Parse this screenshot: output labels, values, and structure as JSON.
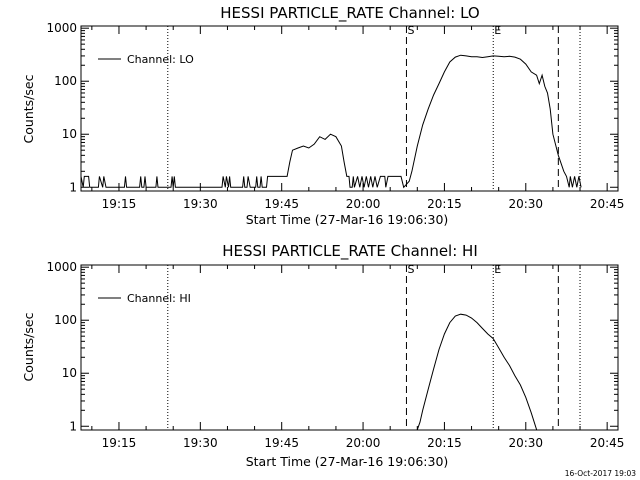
{
  "footer": {
    "timestamp": "16-Oct-2017 19:03"
  },
  "chart_data": [
    {
      "type": "line",
      "title": "HESSI PARTICLE_RATE Channel: LO",
      "xlabel": "Start Time (27-Mar-16 19:06:30)",
      "ylabel": "Counts/sec",
      "y_scale": "log",
      "xlim": [
        "19:08",
        "20:47"
      ],
      "ylim": [
        0.85,
        1100
      ],
      "x_ticks": [
        "19:15",
        "19:30",
        "19:45",
        "20:00",
        "20:15",
        "20:30",
        "20:45"
      ],
      "y_ticks": [
        {
          "value": 1,
          "label": "1"
        },
        {
          "value": 10,
          "label": "10"
        },
        {
          "value": 100,
          "label": "100"
        },
        {
          "value": 1000,
          "label": "1000"
        }
      ],
      "legend": {
        "placement": "top-left",
        "entries": [
          "Channel: LO"
        ]
      },
      "markers": {
        "dotted": [
          "19:24",
          "20:24",
          "20:40"
        ],
        "dashed": [
          "20:08",
          "20:36"
        ],
        "labels": [
          {
            "text": "S",
            "time": "20:08"
          },
          {
            "text": "E",
            "time": "20:24"
          }
        ]
      },
      "series": [
        {
          "name": "Channel: LO",
          "points": [
            [
              "19:08",
              1.6
            ],
            [
              "19:08.4",
              1
            ],
            [
              "19:08.6",
              1.6
            ],
            [
              "19:09.4",
              1.6
            ],
            [
              "19:09.6",
              1
            ],
            [
              "19:11.2",
              1
            ],
            [
              "19:11.4",
              1.6
            ],
            [
              "19:12",
              1
            ],
            [
              "19:12.2",
              1.6
            ],
            [
              "19:12.6",
              1
            ],
            [
              "19:16",
              1
            ],
            [
              "19:16.2",
              1.6
            ],
            [
              "19:16.4",
              1
            ],
            [
              "19:18.8",
              1
            ],
            [
              "19:19",
              1.6
            ],
            [
              "19:19.2",
              1
            ],
            [
              "19:19.6",
              1
            ],
            [
              "19:19.8",
              1.6
            ],
            [
              "19:20",
              1
            ],
            [
              "19:21.8",
              1
            ],
            [
              "19:22",
              1.6
            ],
            [
              "19:22.2",
              1
            ],
            [
              "19:24.6",
              1
            ],
            [
              "19:24.8",
              1.6
            ],
            [
              "19:25",
              1
            ],
            [
              "19:25.2",
              1.6
            ],
            [
              "19:25.4",
              1
            ],
            [
              "19:34",
              1
            ],
            [
              "19:34.2",
              1.6
            ],
            [
              "19:34.6",
              1
            ],
            [
              "19:34.8",
              1.6
            ],
            [
              "19:35.2",
              1
            ],
            [
              "19:35.4",
              1.6
            ],
            [
              "19:35.6",
              1
            ],
            [
              "19:37.8",
              1
            ],
            [
              "19:38",
              1.6
            ],
            [
              "19:38.2",
              1
            ],
            [
              "19:38.6",
              1
            ],
            [
              "19:38.8",
              1.6
            ],
            [
              "19:39.2",
              1
            ],
            [
              "19:40.2",
              1
            ],
            [
              "19:40.4",
              1.6
            ],
            [
              "19:40.6",
              1
            ],
            [
              "19:41",
              1
            ],
            [
              "19:41.2",
              1.6
            ],
            [
              "19:41.4",
              1
            ],
            [
              "19:42.2",
              1
            ],
            [
              "19:42.4",
              1.6
            ],
            [
              "19:46",
              1.6
            ],
            [
              "19:46.5",
              3
            ],
            [
              "19:47",
              5
            ],
            [
              "19:48",
              5.5
            ],
            [
              "19:49",
              6
            ],
            [
              "19:50",
              5.5
            ],
            [
              "19:51",
              6.5
            ],
            [
              "19:52",
              9
            ],
            [
              "19:53",
              8
            ],
            [
              "19:54",
              10
            ],
            [
              "19:55",
              9
            ],
            [
              "19:56",
              6
            ],
            [
              "19:56.5",
              3
            ],
            [
              "19:57",
              1.6
            ],
            [
              "19:57.4",
              1.6
            ],
            [
              "19:57.6",
              1
            ],
            [
              "19:58",
              1
            ],
            [
              "19:58.2",
              1.6
            ],
            [
              "19:58.4",
              1
            ],
            [
              "19:59",
              1.6
            ],
            [
              "19:59.4",
              1
            ],
            [
              "19:59.8",
              1.6
            ],
            [
              "20:00.2",
              1
            ],
            [
              "20:00.6",
              1.6
            ],
            [
              "20:01",
              1
            ],
            [
              "20:01.4",
              1.6
            ],
            [
              "20:01.8",
              1
            ],
            [
              "20:02.2",
              1.6
            ],
            [
              "20:02.6",
              1
            ],
            [
              "20:03.2",
              1.6
            ],
            [
              "20:04",
              1.6
            ],
            [
              "20:04.2",
              1
            ],
            [
              "20:04.6",
              1.6
            ],
            [
              "20:05",
              1.6
            ],
            [
              "20:06",
              1.6
            ],
            [
              "20:07",
              1.6
            ],
            [
              "20:07.5",
              1
            ],
            [
              "20:08.5",
              1.3
            ],
            [
              "20:09",
              2
            ],
            [
              "20:10",
              6
            ],
            [
              "20:11",
              15
            ],
            [
              "20:12",
              30
            ],
            [
              "20:13",
              55
            ],
            [
              "20:14",
              90
            ],
            [
              "20:15",
              150
            ],
            [
              "20:16",
              230
            ],
            [
              "20:17",
              285
            ],
            [
              "20:18",
              310
            ],
            [
              "20:19",
              300
            ],
            [
              "20:20",
              290
            ],
            [
              "20:21",
              290
            ],
            [
              "20:22",
              280
            ],
            [
              "20:23",
              290
            ],
            [
              "20:24",
              300
            ],
            [
              "20:25",
              295
            ],
            [
              "20:26",
              290
            ],
            [
              "20:27",
              295
            ],
            [
              "20:28",
              285
            ],
            [
              "20:29",
              260
            ],
            [
              "20:30",
              210
            ],
            [
              "20:31",
              150
            ],
            [
              "20:32",
              130
            ],
            [
              "20:32.5",
              90
            ],
            [
              "20:33",
              130
            ],
            [
              "20:33.5",
              80
            ],
            [
              "20:34",
              60
            ],
            [
              "20:34.5",
              30
            ],
            [
              "20:35",
              10
            ],
            [
              "20:36",
              4
            ],
            [
              "20:37",
              2
            ],
            [
              "20:37.5",
              1.6
            ],
            [
              "20:38",
              1
            ],
            [
              "20:38.2",
              1.6
            ],
            [
              "20:38.6",
              1
            ],
            [
              "20:39",
              1.6
            ],
            [
              "20:39.4",
              1
            ],
            [
              "20:39.8",
              1.6
            ],
            [
              "20:40.2",
              1
            ]
          ]
        }
      ]
    },
    {
      "type": "line",
      "title": "HESSI PARTICLE_RATE Channel: HI",
      "xlabel": "Start Time (27-Mar-16 19:06:30)",
      "ylabel": "Counts/sec",
      "y_scale": "log",
      "xlim": [
        "19:08",
        "20:47"
      ],
      "ylim": [
        0.85,
        1100
      ],
      "x_ticks": [
        "19:15",
        "19:30",
        "19:45",
        "20:00",
        "20:15",
        "20:30",
        "20:45"
      ],
      "y_ticks": [
        {
          "value": 1,
          "label": "1"
        },
        {
          "value": 10,
          "label": "10"
        },
        {
          "value": 100,
          "label": "100"
        },
        {
          "value": 1000,
          "label": "1000"
        }
      ],
      "legend": {
        "placement": "top-left",
        "entries": [
          "Channel: HI"
        ]
      },
      "markers": {
        "dotted": [
          "19:24",
          "20:24",
          "20:40"
        ],
        "dashed": [
          "20:08",
          "20:36"
        ],
        "labels": [
          {
            "text": "S",
            "time": "20:08"
          },
          {
            "text": "E",
            "time": "20:24"
          }
        ]
      },
      "series": [
        {
          "name": "Channel: HI",
          "points": [
            [
              "20:10",
              0.86
            ],
            [
              "20:10.5",
              1.2
            ],
            [
              "20:11",
              2
            ],
            [
              "20:12",
              5
            ],
            [
              "20:13",
              12
            ],
            [
              "20:14",
              28
            ],
            [
              "20:15",
              55
            ],
            [
              "20:16",
              90
            ],
            [
              "20:17",
              120
            ],
            [
              "20:18",
              130
            ],
            [
              "20:19",
              125
            ],
            [
              "20:20",
              110
            ],
            [
              "20:21",
              90
            ],
            [
              "20:22",
              70
            ],
            [
              "20:23",
              55
            ],
            [
              "20:24",
              45
            ],
            [
              "20:25",
              30
            ],
            [
              "20:26",
              20
            ],
            [
              "20:27",
              14
            ],
            [
              "20:28",
              9
            ],
            [
              "20:29",
              6
            ],
            [
              "20:30",
              3.5
            ],
            [
              "20:31",
              1.8
            ],
            [
              "20:32",
              0.86
            ]
          ]
        }
      ]
    }
  ]
}
